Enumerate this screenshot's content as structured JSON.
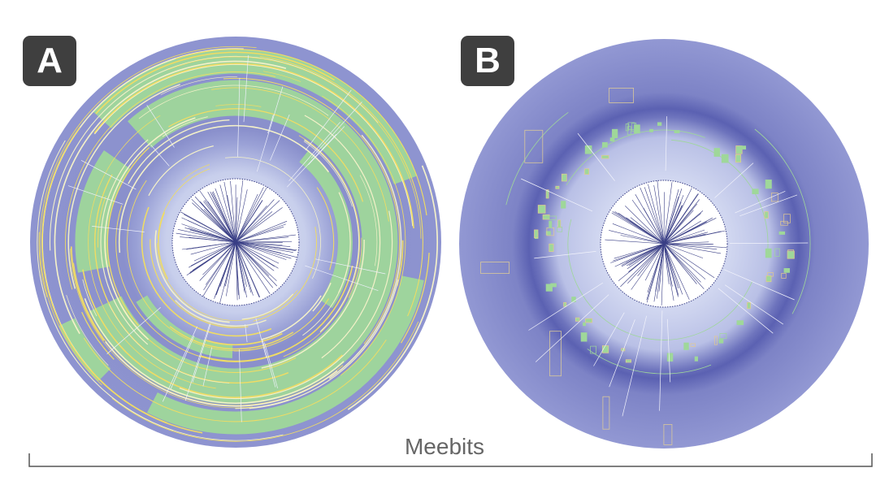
{
  "panels": [
    {
      "label": "A"
    },
    {
      "label": "B"
    }
  ],
  "group_label": "Meebits",
  "colors": {
    "disk": "#8d93d0",
    "inner_light": "#c4cbeb",
    "green": "#9fd79a",
    "yellow": "#f0dc63",
    "spoke": "#3a3f86",
    "badge": "#3f3f3f",
    "bracket": "#555555"
  }
}
